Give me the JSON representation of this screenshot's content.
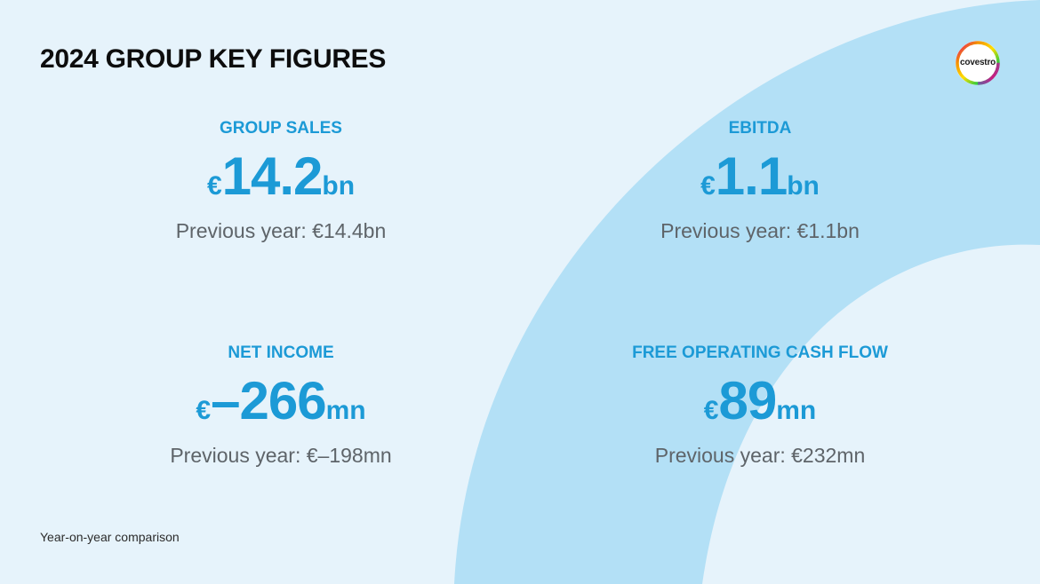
{
  "title": "2024 GROUP KEY FIGURES",
  "brand": {
    "name": "covestro",
    "primary_color": "#1c9ad6",
    "background_color": "#e6f3fb",
    "arc_color": "#b3e0f6"
  },
  "kpis": [
    {
      "label": "GROUP SALES",
      "currency": "€",
      "value": "14.2",
      "unit": "bn",
      "previous": "Previous year: €14.4bn"
    },
    {
      "label": "EBITDA",
      "currency": "€",
      "value": "1.1",
      "unit": "bn",
      "previous": "Previous year: €1.1bn"
    },
    {
      "label": "NET INCOME",
      "currency": "€",
      "value": "–266",
      "unit": "mn",
      "previous": "Previous year: €–198mn"
    },
    {
      "label": "FREE OPERATING CASH FLOW",
      "currency": "€",
      "value": "89",
      "unit": "mn",
      "previous": "Previous year: €232mn"
    }
  ],
  "footnote": "Year-on-year comparison"
}
